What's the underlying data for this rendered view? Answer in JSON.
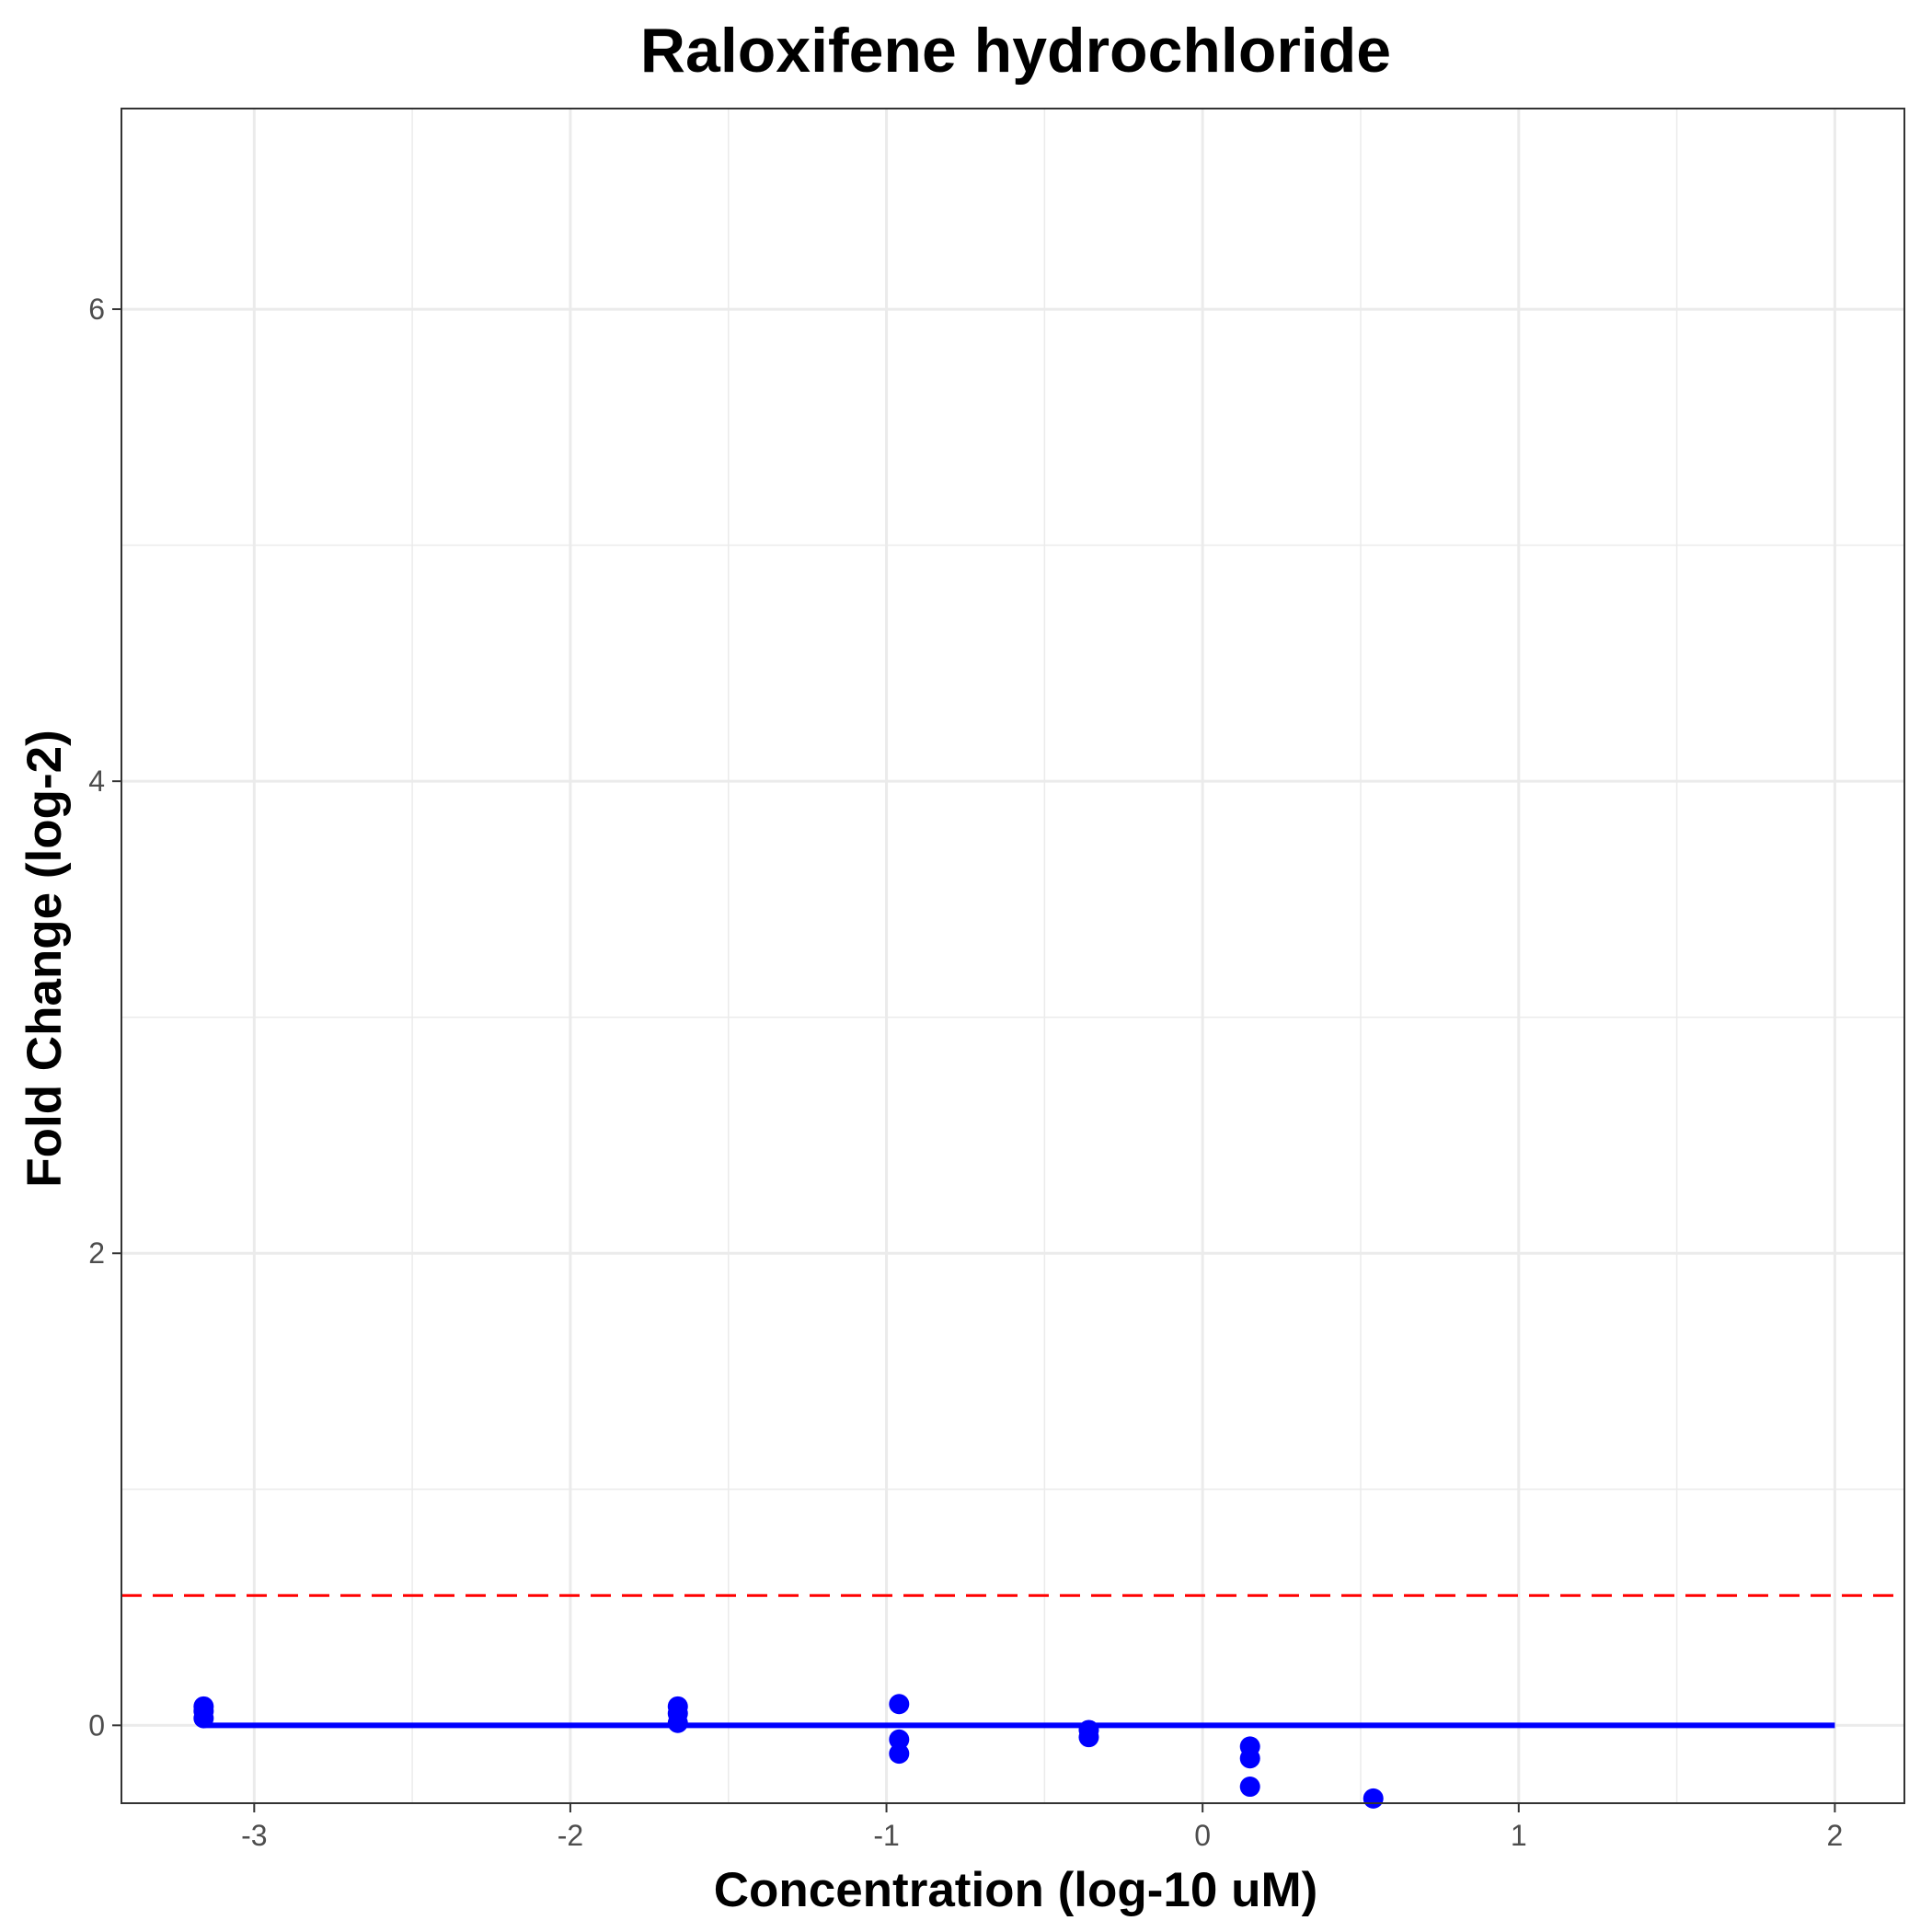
{
  "chart_data": {
    "type": "scatter",
    "title": "Raloxifene hydrochloride",
    "xlabel": "Concentration (log-10 uM)",
    "ylabel": "Fold Change (log-2)",
    "xlim": [
      -3.42,
      2.22
    ],
    "ylim": [
      -0.33,
      6.85
    ],
    "x_ticks": [
      -3,
      -2,
      -1,
      0,
      1,
      2
    ],
    "y_ticks": [
      0,
      2,
      4,
      6
    ],
    "grid": true,
    "points": [
      {
        "x": -3.16,
        "y": 0.08
      },
      {
        "x": -3.16,
        "y": 0.06
      },
      {
        "x": -3.16,
        "y": 0.03
      },
      {
        "x": -1.66,
        "y": 0.08
      },
      {
        "x": -1.66,
        "y": 0.05
      },
      {
        "x": -1.66,
        "y": 0.01
      },
      {
        "x": -0.96,
        "y": 0.09
      },
      {
        "x": -0.96,
        "y": -0.06
      },
      {
        "x": -0.96,
        "y": -0.12
      },
      {
        "x": -0.36,
        "y": -0.02
      },
      {
        "x": -0.36,
        "y": -0.05
      },
      {
        "x": 0.15,
        "y": -0.09
      },
      {
        "x": 0.15,
        "y": -0.14
      },
      {
        "x": 0.15,
        "y": -0.26
      },
      {
        "x": 0.54,
        "y": -0.31
      }
    ],
    "fit_line": {
      "x": [
        -3.16,
        2.0
      ],
      "y": [
        0,
        0
      ]
    },
    "threshold": {
      "y": 0.55
    },
    "colors": {
      "points": "#0000ff",
      "fit": "#0000ff",
      "threshold": "#ff0000",
      "grid": "#ebebeb",
      "border": "#333333"
    }
  }
}
